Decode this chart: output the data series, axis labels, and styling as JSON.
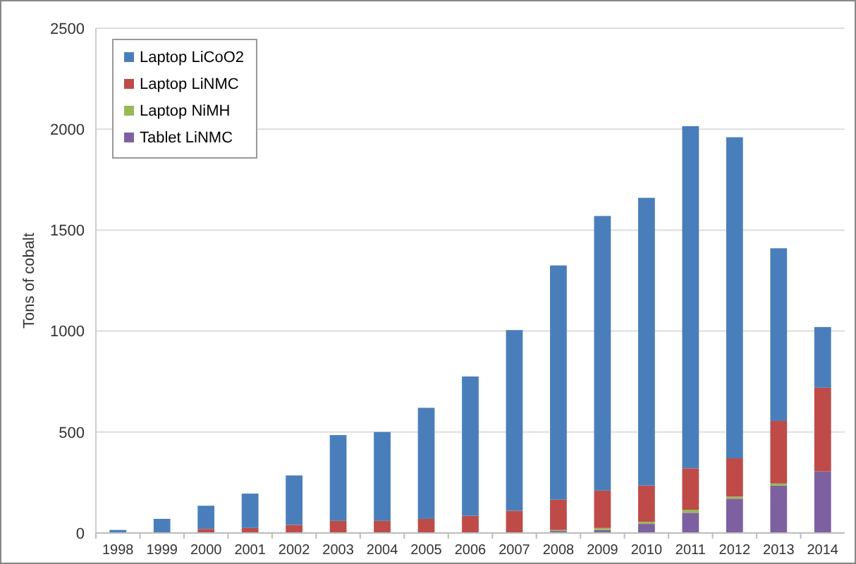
{
  "chart_data": {
    "type": "bar",
    "stacked": true,
    "ylabel": "Tons of cobalt",
    "categories": [
      "1998",
      "1999",
      "2000",
      "2001",
      "2002",
      "2003",
      "2004",
      "2005",
      "2006",
      "2007",
      "2008",
      "2009",
      "2010",
      "2011",
      "2012",
      "2013",
      "2014"
    ],
    "series": [
      {
        "name": "Tablet LiNMC",
        "color": "#7d60a0",
        "values": [
          0,
          0,
          0,
          0,
          0,
          0,
          0,
          0,
          0,
          0,
          10,
          15,
          45,
          100,
          170,
          235,
          305
        ]
      },
      {
        "name": "Laptop NiMH",
        "color": "#98b954",
        "values": [
          0,
          0,
          0,
          0,
          0,
          0,
          0,
          0,
          0,
          0,
          5,
          10,
          10,
          15,
          10,
          10,
          0
        ]
      },
      {
        "name": "Laptop LiNMC",
        "color": "#be4b48",
        "values": [
          0,
          null,
          20,
          25,
          40,
          60,
          60,
          70,
          85,
          110,
          150,
          185,
          180,
          205,
          190,
          310,
          415
        ]
      },
      {
        "name": "Laptop LiCoO2",
        "color": "#4a7ebb",
        "values": [
          15,
          70,
          115,
          170,
          245,
          425,
          440,
          550,
          690,
          895,
          1160,
          1360,
          1425,
          1695,
          1590,
          855,
          300
        ]
      }
    ],
    "ylim": [
      0,
      2500
    ],
    "yticks": [
      0,
      500,
      1000,
      1500,
      2000,
      2500
    ],
    "grid": "y",
    "legend": "top left"
  }
}
